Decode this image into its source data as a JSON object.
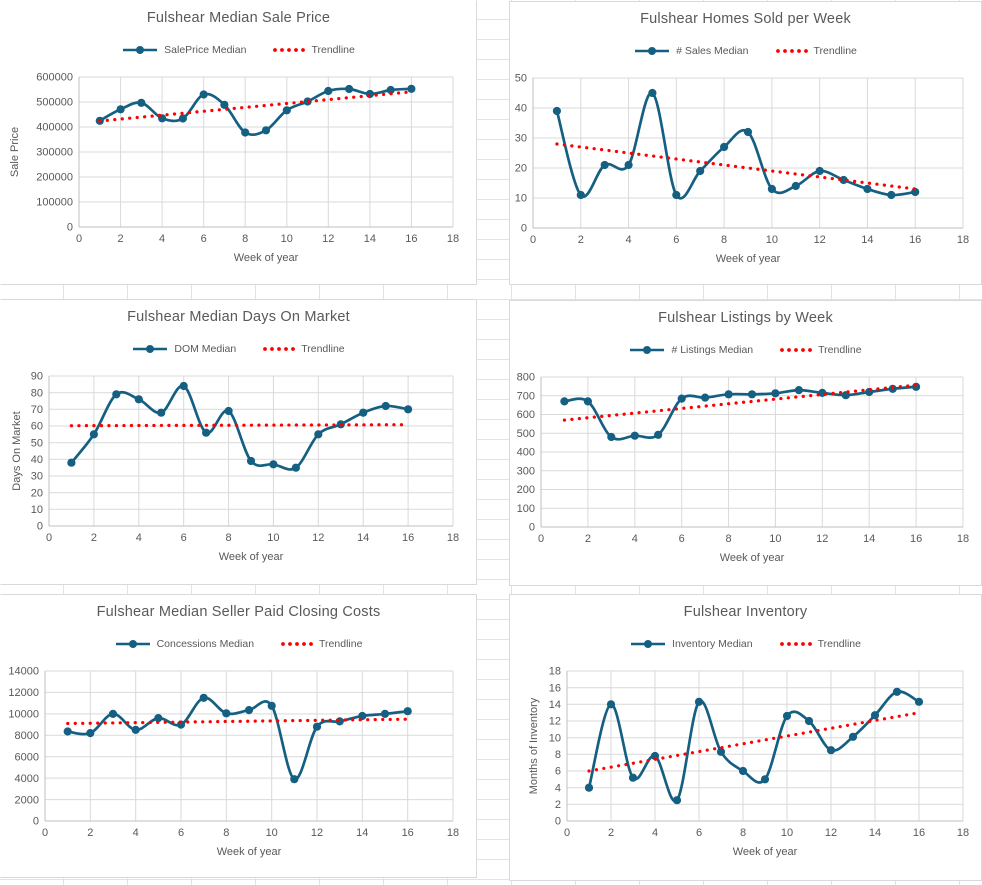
{
  "page": {
    "kind": "excel-worksheet-with-charts",
    "grid_color": "#E3E3E3",
    "panel_border_color": "#D9D9D9",
    "series_color": "#156082",
    "trend_color": "#FF0000",
    "text_color": "#595959"
  },
  "chart_data": [
    {
      "type": "line",
      "title": "Fulshear Median Sale Price",
      "xlabel": "Week of year",
      "ylabel": "Sale Price",
      "xlim": [
        0,
        18
      ],
      "xtick": 2,
      "ylim": [
        0,
        600000
      ],
      "ytick": 100000,
      "grid": true,
      "legend_position": "top",
      "x": [
        1,
        2,
        3,
        4,
        5,
        6,
        7,
        8,
        9,
        10,
        11,
        12,
        13,
        14,
        15,
        16
      ],
      "series": [
        {
          "name": "SalePrice Median",
          "style": "smooth-line-markers",
          "values": [
            425000,
            471000,
            497000,
            435000,
            434000,
            530000,
            489000,
            378000,
            387000,
            467000,
            502000,
            544000,
            552000,
            532000,
            548000,
            553000
          ]
        },
        {
          "name": "Trendline",
          "style": "dotted",
          "x": [
            1,
            16
          ],
          "values": [
            424000,
            541000
          ]
        }
      ]
    },
    {
      "type": "line",
      "title": "Fulshear Homes Sold per Week",
      "xlabel": "Week of year",
      "ylabel": "",
      "xlim": [
        0,
        18
      ],
      "xtick": 2,
      "ylim": [
        0,
        50
      ],
      "ytick": 10,
      "grid": true,
      "legend_position": "top",
      "x": [
        1,
        2,
        3,
        4,
        5,
        6,
        7,
        8,
        9,
        10,
        11,
        12,
        13,
        14,
        15,
        16
      ],
      "series": [
        {
          "name": "# Sales Median",
          "style": "smooth-line-markers",
          "values": [
            39,
            11,
            21,
            21,
            45,
            11,
            19,
            27,
            32,
            13,
            14,
            19,
            16,
            13,
            11,
            12
          ]
        },
        {
          "name": "Trendline",
          "style": "dotted",
          "x": [
            1,
            16
          ],
          "values": [
            28,
            13
          ]
        }
      ]
    },
    {
      "type": "line",
      "title": "Fulshear Median Days On Market",
      "xlabel": "Week of year",
      "ylabel": "Days On Market",
      "xlim": [
        0,
        18
      ],
      "xtick": 2,
      "ylim": [
        0,
        90
      ],
      "ytick": 10,
      "grid": true,
      "legend_position": "top",
      "x": [
        1,
        2,
        3,
        4,
        5,
        6,
        7,
        8,
        9,
        10,
        11,
        12,
        13,
        14,
        15,
        16
      ],
      "series": [
        {
          "name": "DOM Median",
          "style": "smooth-line-markers",
          "values": [
            38,
            55,
            79,
            76,
            68,
            84,
            56,
            69,
            39,
            37,
            35,
            55,
            61,
            68,
            72,
            70
          ]
        },
        {
          "name": "Trendline",
          "style": "dotted",
          "x": [
            1,
            16
          ],
          "values": [
            60.2,
            60.8
          ]
        }
      ]
    },
    {
      "type": "line",
      "title": "Fulshear Listings by Week",
      "xlabel": "Week of year",
      "ylabel": "",
      "xlim": [
        0,
        18
      ],
      "xtick": 2,
      "ylim": [
        0,
        800
      ],
      "ytick": 100,
      "grid": true,
      "legend_position": "top",
      "x": [
        1,
        2,
        3,
        4,
        5,
        6,
        7,
        8,
        9,
        10,
        11,
        12,
        13,
        14,
        15,
        16
      ],
      "series": [
        {
          "name": "# Listings Median",
          "style": "smooth-line-markers",
          "values": [
            670,
            670,
            480,
            487,
            492,
            685,
            690,
            708,
            708,
            713,
            730,
            715,
            703,
            720,
            737,
            748
          ]
        },
        {
          "name": "Trendline",
          "style": "dotted",
          "x": [
            1,
            16
          ],
          "values": [
            570,
            757
          ]
        }
      ]
    },
    {
      "type": "line",
      "title": "Fulshear Median Seller Paid Closing Costs",
      "xlabel": "Week of year",
      "ylabel": "",
      "xlim": [
        0,
        18
      ],
      "xtick": 2,
      "ylim": [
        0,
        14000
      ],
      "ytick": 2000,
      "grid": true,
      "legend_position": "top",
      "x": [
        1,
        2,
        3,
        4,
        5,
        6,
        7,
        8,
        9,
        10,
        11,
        12,
        13,
        14,
        15,
        16
      ],
      "series": [
        {
          "name": "Concessions Median",
          "style": "smooth-line-markers",
          "values": [
            8350,
            8200,
            10000,
            8500,
            9600,
            9000,
            11500,
            10050,
            10350,
            10750,
            3900,
            8800,
            9300,
            9800,
            10000,
            10250
          ]
        },
        {
          "name": "Trendline",
          "style": "dotted",
          "x": [
            1,
            16
          ],
          "values": [
            9100,
            9500
          ]
        }
      ]
    },
    {
      "type": "line",
      "title": "Fulshear Inventory",
      "xlabel": "Week of year",
      "ylabel": "Months of Inventory",
      "xlim": [
        0,
        18
      ],
      "xtick": 2,
      "ylim": [
        0,
        18
      ],
      "ytick": 2,
      "grid": true,
      "legend_position": "top",
      "x": [
        1,
        2,
        3,
        4,
        5,
        6,
        7,
        8,
        9,
        10,
        11,
        12,
        13,
        14,
        15,
        16
      ],
      "series": [
        {
          "name": "Inventory Median",
          "style": "smooth-line-markers",
          "values": [
            4,
            14,
            5.2,
            7.8,
            2.5,
            14.3,
            8.3,
            6,
            5,
            12.6,
            12,
            8.5,
            10.1,
            12.7,
            15.5,
            14.3
          ]
        },
        {
          "name": "Trendline",
          "style": "dotted",
          "x": [
            1,
            16
          ],
          "values": [
            6,
            13
          ]
        }
      ]
    }
  ]
}
